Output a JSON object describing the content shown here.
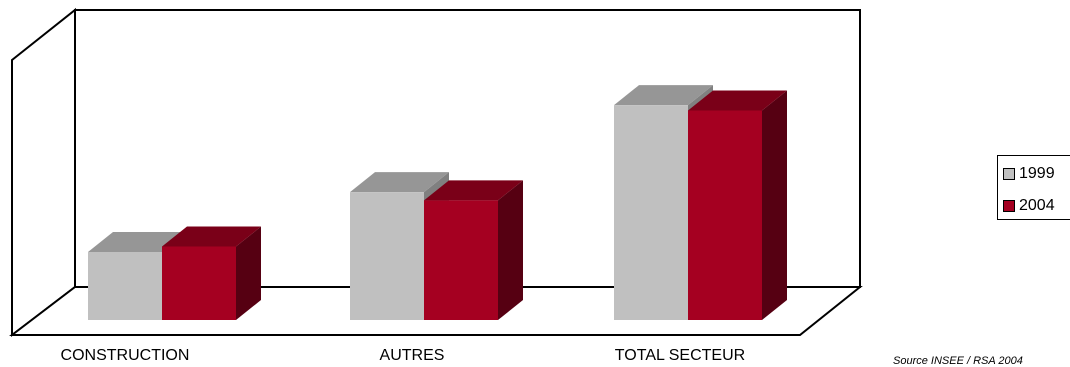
{
  "chart_data": {
    "type": "bar",
    "categories": [
      "CONSTRUCTION",
      "AUTRES",
      "TOTAL SECTEUR"
    ],
    "series": [
      {
        "name": "1999",
        "values": [
          25,
          47,
          79
        ]
      },
      {
        "name": "2004",
        "values": [
          27,
          44,
          77
        ]
      }
    ],
    "ylim": [
      0,
      100
    ],
    "grid": false,
    "legend_position": "right",
    "colors": {
      "1999": {
        "front": "#c0c0c0",
        "top": "#969696",
        "side": "#808080"
      },
      "2004": {
        "front": "#a50021",
        "top": "#7a0018",
        "side": "#560012"
      }
    }
  },
  "title": "",
  "source": "Source INSEE / RSA 2004",
  "legend": [
    {
      "label": "1999",
      "color": "#c0c0c0"
    },
    {
      "label": "2004",
      "color": "#a50021"
    }
  ]
}
